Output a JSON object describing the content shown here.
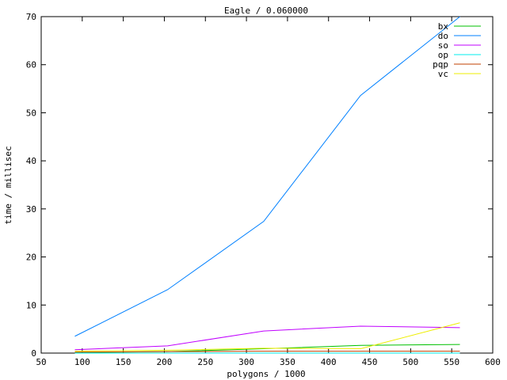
{
  "chart_data": {
    "type": "line",
    "title": "Eagle / 0.060000",
    "xlabel": "polygons / 1000",
    "ylabel": "time / millisec",
    "xlim": [
      50,
      600
    ],
    "ylim": [
      0,
      70
    ],
    "xticks": [
      50,
      100,
      150,
      200,
      250,
      300,
      350,
      400,
      450,
      500,
      550,
      600
    ],
    "yticks": [
      0,
      10,
      20,
      30,
      40,
      50,
      60,
      70
    ],
    "grid": false,
    "legend": "top-right",
    "x": [
      91,
      204,
      321,
      439,
      560
    ],
    "series": [
      {
        "name": "bx",
        "color": "#00c000",
        "values": [
          0.1,
          0.3,
          0.9,
          1.6,
          1.8
        ]
      },
      {
        "name": "do",
        "color": "#0080ff",
        "values": [
          3.5,
          13.2,
          27.4,
          53.6,
          70.2
        ]
      },
      {
        "name": "so",
        "color": "#c000ff",
        "values": [
          0.7,
          1.5,
          4.6,
          5.6,
          5.3
        ]
      },
      {
        "name": "op",
        "color": "#00eeee",
        "values": [
          0.0,
          0.0,
          0.0,
          0.0,
          0.0
        ]
      },
      {
        "name": "pqp",
        "color": "#c04000",
        "values": [
          0.2,
          0.3,
          0.4,
          0.4,
          0.4
        ]
      },
      {
        "name": "vc",
        "color": "#eeee00",
        "values": [
          0.4,
          0.6,
          1.0,
          0.9,
          6.3
        ]
      }
    ]
  }
}
